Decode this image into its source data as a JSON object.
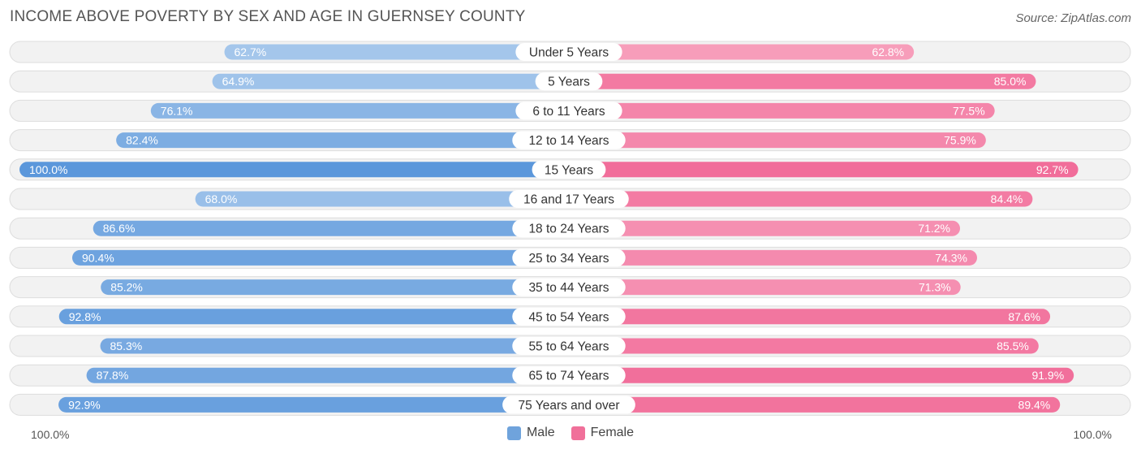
{
  "chart_data": {
    "type": "bar",
    "orientation": "horizontal-diverging",
    "title": "INCOME ABOVE POVERTY BY SEX AND AGE IN GUERNSEY COUNTY",
    "source": "Source: ZipAtlas.com",
    "categories": [
      "Under 5 Years",
      "5 Years",
      "6 to 11 Years",
      "12 to 14 Years",
      "15 Years",
      "16 and 17 Years",
      "18 to 24 Years",
      "25 to 34 Years",
      "35 to 44 Years",
      "45 to 54 Years",
      "55 to 64 Years",
      "65 to 74 Years",
      "75 Years and over"
    ],
    "series": [
      {
        "name": "Male",
        "values": [
          62.7,
          64.9,
          76.1,
          82.4,
          100.0,
          68.0,
          86.6,
          90.4,
          85.2,
          92.8,
          85.3,
          87.8,
          92.9
        ],
        "labels": [
          "62.7%",
          "64.9%",
          "76.1%",
          "82.4%",
          "100.0%",
          "68.0%",
          "86.6%",
          "90.4%",
          "85.2%",
          "92.8%",
          "85.3%",
          "87.8%",
          "92.9%"
        ]
      },
      {
        "name": "Female",
        "values": [
          62.8,
          85.0,
          77.5,
          75.9,
          92.7,
          84.4,
          71.2,
          74.3,
          71.3,
          87.6,
          85.5,
          91.9,
          89.4
        ],
        "labels": [
          "62.8%",
          "85.0%",
          "77.5%",
          "75.9%",
          "92.7%",
          "84.4%",
          "71.2%",
          "74.3%",
          "71.3%",
          "87.6%",
          "85.5%",
          "91.9%",
          "89.4%"
        ]
      }
    ],
    "xlim": [
      0,
      100
    ],
    "axis_left_label": "100.0%",
    "axis_right_label": "100.0%",
    "legend": [
      {
        "label": "Male",
        "color": "#6fa3dc"
      },
      {
        "label": "Female",
        "color": "#f0709a"
      }
    ],
    "colors": {
      "male_dark": "#5b97db",
      "male_light": "#a9c9ec",
      "female_dark": "#f06292",
      "female_light": "#f7a1bd"
    }
  }
}
